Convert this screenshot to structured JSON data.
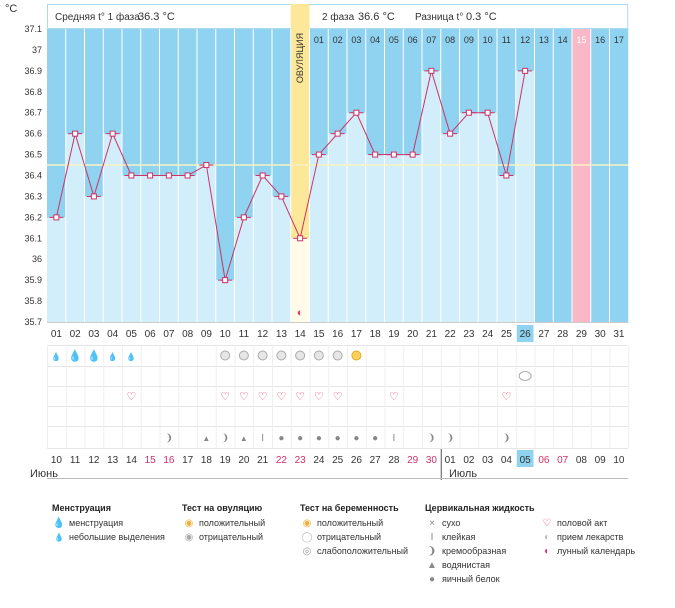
{
  "chart_data": {
    "type": "line",
    "yunit": "°C",
    "ylim": [
      35.7,
      37.1
    ],
    "yticks": [
      35.7,
      35.8,
      35.9,
      36,
      36.1,
      36.2,
      36.3,
      36.4,
      36.5,
      36.6,
      36.7,
      36.8,
      36.9,
      37,
      37.1
    ],
    "ytick_labels": [
      "35.7",
      "35.8",
      "35.9",
      "36",
      "36.1",
      "36.2",
      "36.3",
      "36.4",
      "36.5",
      "36.6",
      "36.7",
      "36.8",
      "36.9",
      "37",
      "37.1"
    ],
    "cycle_days": [
      "01",
      "02",
      "03",
      "04",
      "05",
      "06",
      "07",
      "08",
      "09",
      "10",
      "11",
      "12",
      "13",
      "14",
      "15",
      "16",
      "17",
      "18",
      "19",
      "20",
      "21",
      "22",
      "23",
      "24",
      "25",
      "26",
      "27",
      "28",
      "29",
      "30",
      "31"
    ],
    "dates": [
      "10",
      "11",
      "12",
      "13",
      "14",
      "15",
      "16",
      "17",
      "18",
      "19",
      "20",
      "21",
      "22",
      "23",
      "24",
      "25",
      "26",
      "27",
      "28",
      "29",
      "30",
      "01",
      "02",
      "03",
      "04",
      "05",
      "06",
      "07",
      "08",
      "09",
      "10"
    ],
    "weekend_dates": [
      5,
      6,
      12,
      13,
      19,
      20,
      26,
      27
    ],
    "temperatures": [
      36.2,
      36.6,
      36.3,
      36.6,
      36.4,
      36.4,
      36.4,
      36.4,
      36.45,
      35.9,
      36.2,
      36.4,
      36.3,
      36.1,
      36.5,
      36.6,
      36.7,
      36.5,
      36.5,
      36.5,
      36.9,
      36.6,
      36.7,
      36.7,
      36.4,
      36.9
    ],
    "today_index": 25,
    "ovulation_index": 13,
    "ovulation_label": "ОВУЛЯЦИЯ",
    "phase2_day_labels": [
      "01",
      "02",
      "03",
      "04",
      "05",
      "06",
      "07",
      "08",
      "09",
      "10",
      "11",
      "12",
      "13",
      "14",
      "15",
      "16",
      "17"
    ],
    "phase2_start_index": 14,
    "pink_day_index": 28,
    "coverline": 36.45,
    "header": {
      "phase1_label": "Средняя t° 1 фаза",
      "phase1_value": "36.3 °C",
      "phase2_label": "2 фаза",
      "phase2_value": "36.6 °C",
      "diff_label": "Разница t°",
      "diff_value": "0.3 °C"
    },
    "rows": {
      "menstruation": [
        "small",
        "heavy",
        "heavy",
        "small",
        "small"
      ],
      "ovulation_test": [
        {
          "day": 9,
          "kind": "negative"
        },
        {
          "day": 10,
          "kind": "negative"
        },
        {
          "day": 11,
          "kind": "negative"
        },
        {
          "day": 12,
          "kind": "negative"
        },
        {
          "day": 13,
          "kind": "negative"
        },
        {
          "day": 14,
          "kind": "negative"
        },
        {
          "day": 15,
          "kind": "negative"
        },
        {
          "day": 16,
          "kind": "positive"
        }
      ],
      "pregnancy_test": [
        {
          "day": 25,
          "kind": "negative"
        }
      ],
      "intercourse": [
        4,
        9,
        10,
        11,
        12,
        13,
        14,
        15,
        18,
        24
      ],
      "cervical": [
        {
          "day": 6,
          "kind": "creamy"
        },
        {
          "day": 8,
          "kind": "watery"
        },
        {
          "day": 9,
          "kind": "creamy"
        },
        {
          "day": 10,
          "kind": "watery"
        },
        {
          "day": 11,
          "kind": "sticky"
        },
        {
          "day": 12,
          "kind": "eggwhite"
        },
        {
          "day": 13,
          "kind": "eggwhite"
        },
        {
          "day": 14,
          "kind": "eggwhite"
        },
        {
          "day": 15,
          "kind": "eggwhite"
        },
        {
          "day": 16,
          "kind": "eggwhite"
        },
        {
          "day": 17,
          "kind": "eggwhite"
        },
        {
          "day": 18,
          "kind": "sticky"
        },
        {
          "day": 20,
          "kind": "creamy"
        },
        {
          "day": 21,
          "kind": "creamy"
        },
        {
          "day": 24,
          "kind": "creamy"
        }
      ]
    }
  },
  "months": {
    "left": "Июнь",
    "right": "Июль"
  },
  "legend": {
    "menstruation": {
      "title": "Менструация",
      "items": [
        "менструация",
        "небольшие выделения"
      ]
    },
    "ovulation": {
      "title": "Тест на овуляцию",
      "items": [
        "положительный",
        "отрицательный"
      ]
    },
    "pregnancy": {
      "title": "Тест на беременность",
      "items": [
        "положительный",
        "отрицательный",
        "слабоположительный"
      ]
    },
    "cervical": {
      "title": "Цервикальная жидкость",
      "items": [
        "сухо",
        "клейкая",
        "кремообразная",
        "водянистая",
        "яичный белок"
      ]
    },
    "other": {
      "items": [
        "половой акт",
        "прием лекарств",
        "лунный календарь"
      ]
    }
  },
  "colors": {
    "sky": "#8fd3f0",
    "bar": "#d3eefb",
    "line": "#cc3366",
    "ovulation": "#fde89a",
    "pink": "#f8b8c8",
    "today": "#8fd3f0"
  }
}
